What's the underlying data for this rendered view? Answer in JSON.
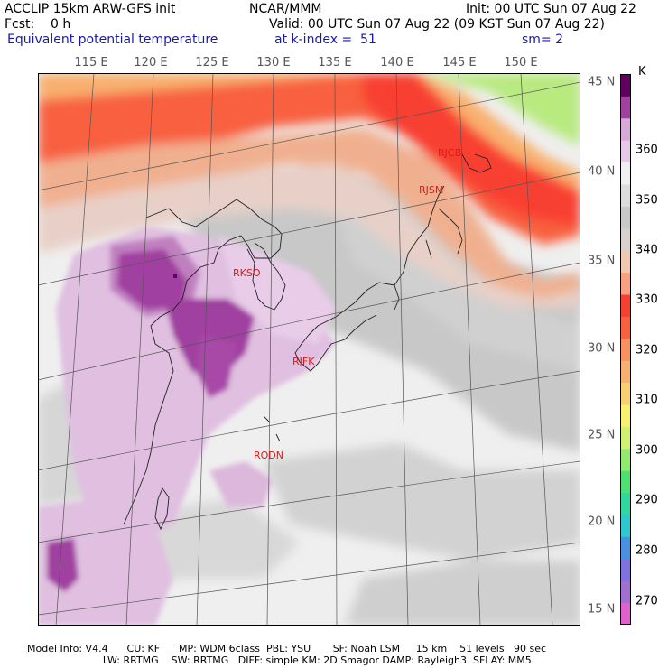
{
  "header": {
    "line1_left": "ACCLIP 15km ARW-GFS init",
    "line1_center": "NCAR/MMM",
    "line1_right": "Init: 00 UTC Sun 07 Aug 22",
    "line2_left": "Fcst:    0 h",
    "line2_right": "Valid: 00 UTC Sun 07 Aug 22 (09 KST Sun 07 Aug 22)",
    "line3_left": "Equivalent potential temperature",
    "line3_center": "at k-index =  51",
    "line3_right": "sm= 2"
  },
  "map": {
    "lon_labels": [
      "115 E",
      "120 E",
      "125 E",
      "130 E",
      "135 E",
      "140 E",
      "145 E",
      "150 E"
    ],
    "lat_labels": [
      "45 N",
      "40 N",
      "35 N",
      "30 N",
      "25 N",
      "20 N",
      "15 N"
    ],
    "stations": [
      {
        "name": "RJCB",
        "lon": 143.2,
        "lat": 42.9
      },
      {
        "name": "RJSM",
        "lon": 141.4,
        "lat": 40.7
      },
      {
        "name": "RKSO",
        "lon": 127.0,
        "lat": 37.1
      },
      {
        "name": "RJFK",
        "lon": 130.7,
        "lat": 31.8
      },
      {
        "name": "RODN",
        "lon": 127.8,
        "lat": 26.4
      }
    ]
  },
  "colorbar": {
    "unit": "K",
    "ticks": [
      "360",
      "350",
      "340",
      "330",
      "320",
      "310",
      "300",
      "290",
      "280",
      "270"
    ],
    "colors": [
      "#e060d0",
      "#a070d0",
      "#8070e0",
      "#4a90e0",
      "#30c8d0",
      "#30d8a0",
      "#50e070",
      "#90ea70",
      "#d0f070",
      "#f8f070",
      "#f8d070",
      "#f8b070",
      "#f89060",
      "#f86040",
      "#f84030",
      "#f8a080",
      "#f0c8b0",
      "#d8d0cc",
      "#c8c8c8",
      "#dcdcdc",
      "#f0f0f0",
      "#e8c8e8",
      "#d8a8d8",
      "#a040a0",
      "#600060"
    ]
  },
  "footer": {
    "line1": "Model Info: V4.4      CU: KF      MP: WDM 6class  PBL: YSU       SF: Noah LSM     15 km    51 levels   90 sec",
    "line2": "                        LW: RRTMG    SW: RRTMG   DIFF: simple KM: 2D Smagor DAMP: Rayleigh3  SFLAY: MM5"
  }
}
